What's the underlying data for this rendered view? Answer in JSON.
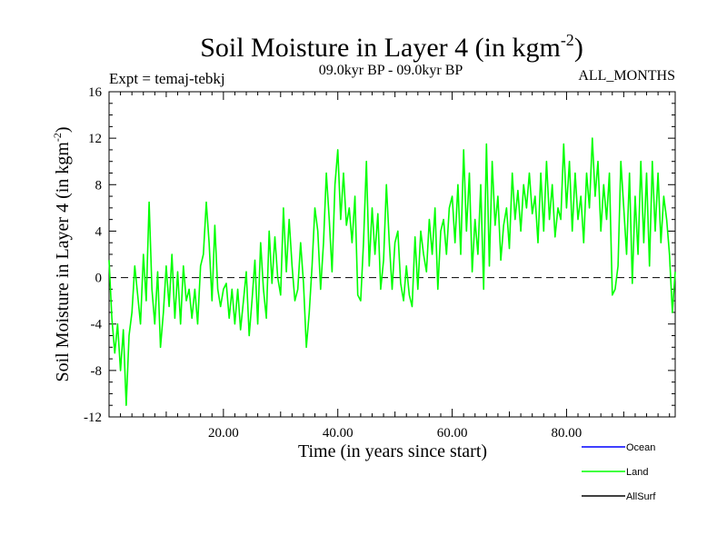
{
  "chart_data": {
    "type": "line",
    "title": "Soil Moisture in Layer 4 (in kgm",
    "title_sup": "-2",
    "title_end": ")",
    "subtitle_left": "Expt = temaj-tebkj",
    "subtitle_center": "09.0kyr BP - 09.0kyr BP",
    "subtitle_right": "ALL_MONTHS",
    "xlabel": "Time (in years since start)",
    "ylabel": "Soil Moisture in Layer 4 (in kgm",
    "ylabel_sup": "-2",
    "ylabel_end": ")",
    "xlim": [
      0,
      99
    ],
    "ylim": [
      -12,
      16
    ],
    "x_ticks": [
      20,
      40,
      60,
      80
    ],
    "x_tick_labels": [
      "20.00",
      "40.00",
      "60.00",
      "80.00"
    ],
    "y_ticks": [
      -12,
      -8,
      -4,
      0,
      4,
      8,
      12,
      16
    ],
    "y_tick_labels": [
      "-12",
      "-8",
      "-4",
      "0",
      "4",
      "8",
      "12",
      "16"
    ],
    "zero_line": 0,
    "legend_position": "bottom-right",
    "series": [
      {
        "name": "Ocean",
        "color": "#0000ff",
        "values": []
      },
      {
        "name": "Land",
        "color": "#00ff00",
        "x": [
          0,
          0.5,
          1,
          1.5,
          2,
          2.5,
          3,
          3.5,
          4,
          4.5,
          5,
          5.5,
          6,
          6.5,
          7,
          7.5,
          8,
          8.5,
          9,
          9.5,
          10,
          10.5,
          11,
          11.5,
          12,
          12.5,
          13,
          13.5,
          14,
          14.5,
          15,
          15.5,
          16,
          16.5,
          17,
          17.5,
          18,
          18.5,
          19,
          19.5,
          20,
          20.5,
          21,
          21.5,
          22,
          22.5,
          23,
          23.5,
          24,
          24.5,
          25,
          25.5,
          26,
          26.5,
          27,
          27.5,
          28,
          28.5,
          29,
          29.5,
          30,
          30.5,
          31,
          31.5,
          32,
          32.5,
          33,
          33.5,
          34,
          34.5,
          35,
          35.5,
          36,
          36.5,
          37,
          37.5,
          38,
          38.5,
          39,
          39.5,
          40,
          40.5,
          41,
          41.5,
          42,
          42.5,
          43,
          43.5,
          44,
          44.5,
          45,
          45.5,
          46,
          46.5,
          47,
          47.5,
          48,
          48.5,
          49,
          49.5,
          50,
          50.5,
          51,
          51.5,
          52,
          52.5,
          53,
          53.5,
          54,
          54.5,
          55,
          55.5,
          56,
          56.5,
          57,
          57.5,
          58,
          58.5,
          59,
          59.5,
          60,
          60.5,
          61,
          61.5,
          62,
          62.5,
          63,
          63.5,
          64,
          64.5,
          65,
          65.5,
          66,
          66.5,
          67,
          67.5,
          68,
          68.5,
          69,
          69.5,
          70,
          70.5,
          71,
          71.5,
          72,
          72.5,
          73,
          73.5,
          74,
          74.5,
          75,
          75.5,
          76,
          76.5,
          77,
          77.5,
          78,
          78.5,
          79,
          79.5,
          80,
          80.5,
          81,
          81.5,
          82,
          82.5,
          83,
          83.5,
          84,
          84.5,
          85,
          85.5,
          86,
          86.5,
          87,
          87.5,
          88,
          88.5,
          89,
          89.5,
          90,
          90.5,
          91,
          91.5,
          92,
          92.5,
          93,
          93.5,
          94,
          94.5,
          95,
          95.5,
          96,
          96.5,
          97,
          97.5,
          98,
          98.5,
          99
        ],
        "values": [
          1.5,
          -3.5,
          -6.5,
          -4,
          -8,
          -4.5,
          -11,
          -5,
          -3,
          1,
          -1.5,
          -4,
          2,
          -2,
          6.5,
          -1,
          -4,
          0.5,
          -6,
          -3,
          1,
          -2.5,
          2,
          -3.5,
          0.5,
          -4,
          1,
          -2,
          -1,
          -3.5,
          -1,
          -4,
          1,
          2,
          6.5,
          3,
          -2,
          4.5,
          -1,
          -2.5,
          -1,
          -0.5,
          -3.5,
          -1,
          -4,
          -1,
          -4.5,
          -2,
          0.5,
          -5,
          -2,
          1.5,
          -4,
          3,
          -1,
          -3.5,
          4,
          -0.5,
          3.5,
          0,
          -1.5,
          6,
          0.5,
          5,
          1,
          -2,
          -1,
          3,
          -0.5,
          -6,
          -3,
          1,
          6,
          4,
          -1,
          3,
          9,
          5,
          0.5,
          8,
          11,
          5,
          9,
          4.5,
          6,
          3,
          7,
          -1.5,
          -2,
          3,
          10,
          1,
          6,
          2,
          5.5,
          -1,
          1.5,
          8,
          3,
          -1,
          3,
          4,
          -0.5,
          -2,
          1,
          -1.5,
          -2.5,
          3.5,
          -1,
          4,
          2,
          0.5,
          5,
          2,
          6,
          -1,
          4,
          5,
          2,
          6,
          7,
          3,
          8,
          2,
          11,
          4,
          9,
          0.5,
          5,
          2,
          8,
          -1,
          11.5,
          1,
          10,
          4.5,
          7,
          1.5,
          4.5,
          6,
          2.5,
          9,
          5,
          7.5,
          4,
          8,
          6,
          9,
          5.5,
          7,
          3,
          9,
          4,
          10,
          5,
          8,
          3.5,
          6,
          5,
          11.5,
          6,
          10,
          4,
          9,
          5,
          7,
          3,
          9,
          6,
          12,
          7,
          10,
          4,
          8,
          5,
          9,
          -1.5,
          -1,
          1,
          10,
          6,
          2,
          9,
          -0.5,
          7,
          2,
          10,
          3,
          9,
          1,
          10,
          4,
          9,
          3,
          7,
          5,
          2,
          -3,
          0.5
        ]
      },
      {
        "name": "AllSurf",
        "color": "#000000",
        "values": []
      }
    ]
  }
}
